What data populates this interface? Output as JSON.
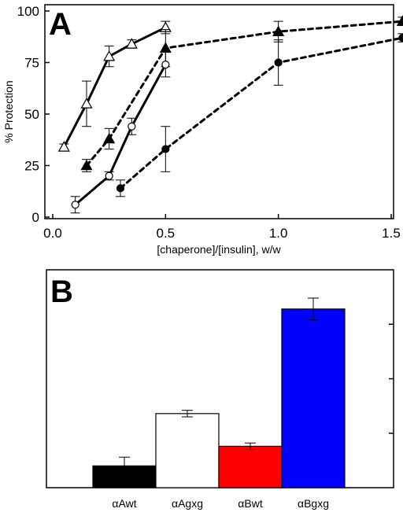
{
  "chart_data": [
    {
      "type": "line",
      "panel_label": "A",
      "xlabel": "[chaperone]/[insulin], w/w",
      "ylabel": "% Protection",
      "xlim": [
        0,
        1.55
      ],
      "ylim": [
        0,
        100
      ],
      "xticks": [
        "0.0",
        "0.5",
        "1.0",
        "1.5"
      ],
      "xtick_values": [
        0,
        0.5,
        1.0,
        1.5
      ],
      "yticks": [
        "0",
        "25",
        "50",
        "75",
        "100"
      ],
      "ytick_values": [
        0,
        25,
        50,
        75,
        100
      ],
      "grid": false,
      "series": [
        {
          "marker": "open-triangle",
          "line_style": "solid",
          "x": [
            0.05,
            0.15,
            0.25,
            0.35,
            0.5
          ],
          "y": [
            34,
            55,
            78,
            84,
            92
          ],
          "err": [
            1.5,
            11,
            5,
            2,
            3
          ]
        },
        {
          "marker": "filled-triangle",
          "line_style": "dashed",
          "x": [
            0.15,
            0.25,
            0.5,
            1.0,
            1.55
          ],
          "y": [
            25,
            38,
            82,
            90,
            95
          ],
          "err": [
            3,
            5,
            9,
            5,
            2
          ]
        },
        {
          "marker": "open-circle",
          "line_style": "solid",
          "x": [
            0.1,
            0.25,
            0.35,
            0.5
          ],
          "y": [
            6,
            20,
            44,
            74
          ],
          "err": [
            4,
            2,
            4,
            6
          ]
        },
        {
          "marker": "filled-circle",
          "line_style": "dashed",
          "x": [
            0.3,
            0.5,
            1.0,
            1.55
          ],
          "y": [
            14,
            33,
            75,
            87
          ],
          "err": [
            4,
            11,
            11,
            2
          ]
        }
      ]
    },
    {
      "type": "bar",
      "panel_label": "B",
      "categories": [
        "αAwt",
        "αAgxg",
        "αBwt",
        "αBgxg"
      ],
      "values": [
        10,
        34,
        19,
        82
      ],
      "err": [
        4,
        1.5,
        1.5,
        5
      ],
      "colors": [
        "#000000",
        "#ffffff",
        "#ff0000",
        "#0000ff"
      ],
      "ylim": [
        0,
        100
      ],
      "grid": false
    }
  ]
}
